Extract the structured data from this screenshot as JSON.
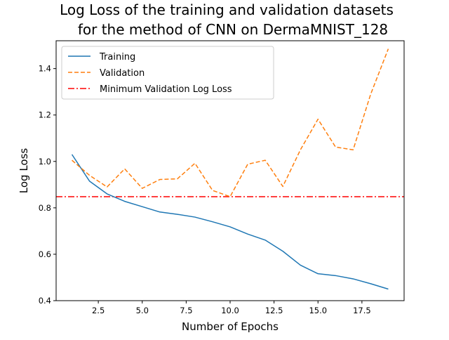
{
  "chart_data": {
    "type": "line",
    "title_line1": "Log Loss of the training and validation datasets",
    "title_line2": "for the method of CNN on DermaMNIST_128",
    "xlabel": "Number of Epochs",
    "ylabel": "Log Loss",
    "xlim": [
      0.1,
      19.9
    ],
    "ylim": [
      0.4,
      1.52
    ],
    "x_ticks": [
      2.5,
      5.0,
      7.5,
      10.0,
      12.5,
      15.0,
      17.5
    ],
    "x_tick_labels": [
      "2.5",
      "5.0",
      "7.5",
      "10.0",
      "12.5",
      "15.0",
      "17.5"
    ],
    "y_ticks": [
      0.4,
      0.6,
      0.8,
      1.0,
      1.2,
      1.4
    ],
    "y_tick_labels": [
      "0.4",
      "0.6",
      "0.8",
      "1.0",
      "1.2",
      "1.4"
    ],
    "grid": false,
    "legend_position": "top-left",
    "x": [
      1,
      2,
      3,
      4,
      5,
      6,
      7,
      8,
      9,
      10,
      11,
      12,
      13,
      14,
      15,
      16,
      17,
      18,
      19
    ],
    "series": [
      {
        "name": "Training",
        "color": "#1f77b4",
        "dash": "solid",
        "values": [
          1.03,
          0.915,
          0.86,
          0.828,
          0.805,
          0.782,
          0.772,
          0.76,
          0.74,
          0.718,
          0.687,
          0.661,
          0.613,
          0.553,
          0.516,
          0.508,
          0.494,
          0.473,
          0.45
        ]
      },
      {
        "name": "Validation",
        "color": "#ff7f0e",
        "dash": "dashed",
        "values": [
          1.005,
          0.94,
          0.89,
          0.968,
          0.884,
          0.922,
          0.925,
          0.992,
          0.875,
          0.848,
          0.988,
          1.005,
          0.892,
          1.05,
          1.182,
          1.062,
          1.05,
          1.29,
          1.485
        ]
      }
    ],
    "hlines": [
      {
        "name": "Minimum Validation Log Loss",
        "color": "#ff0000",
        "dash": "dashdot",
        "y": 0.848
      }
    ]
  }
}
